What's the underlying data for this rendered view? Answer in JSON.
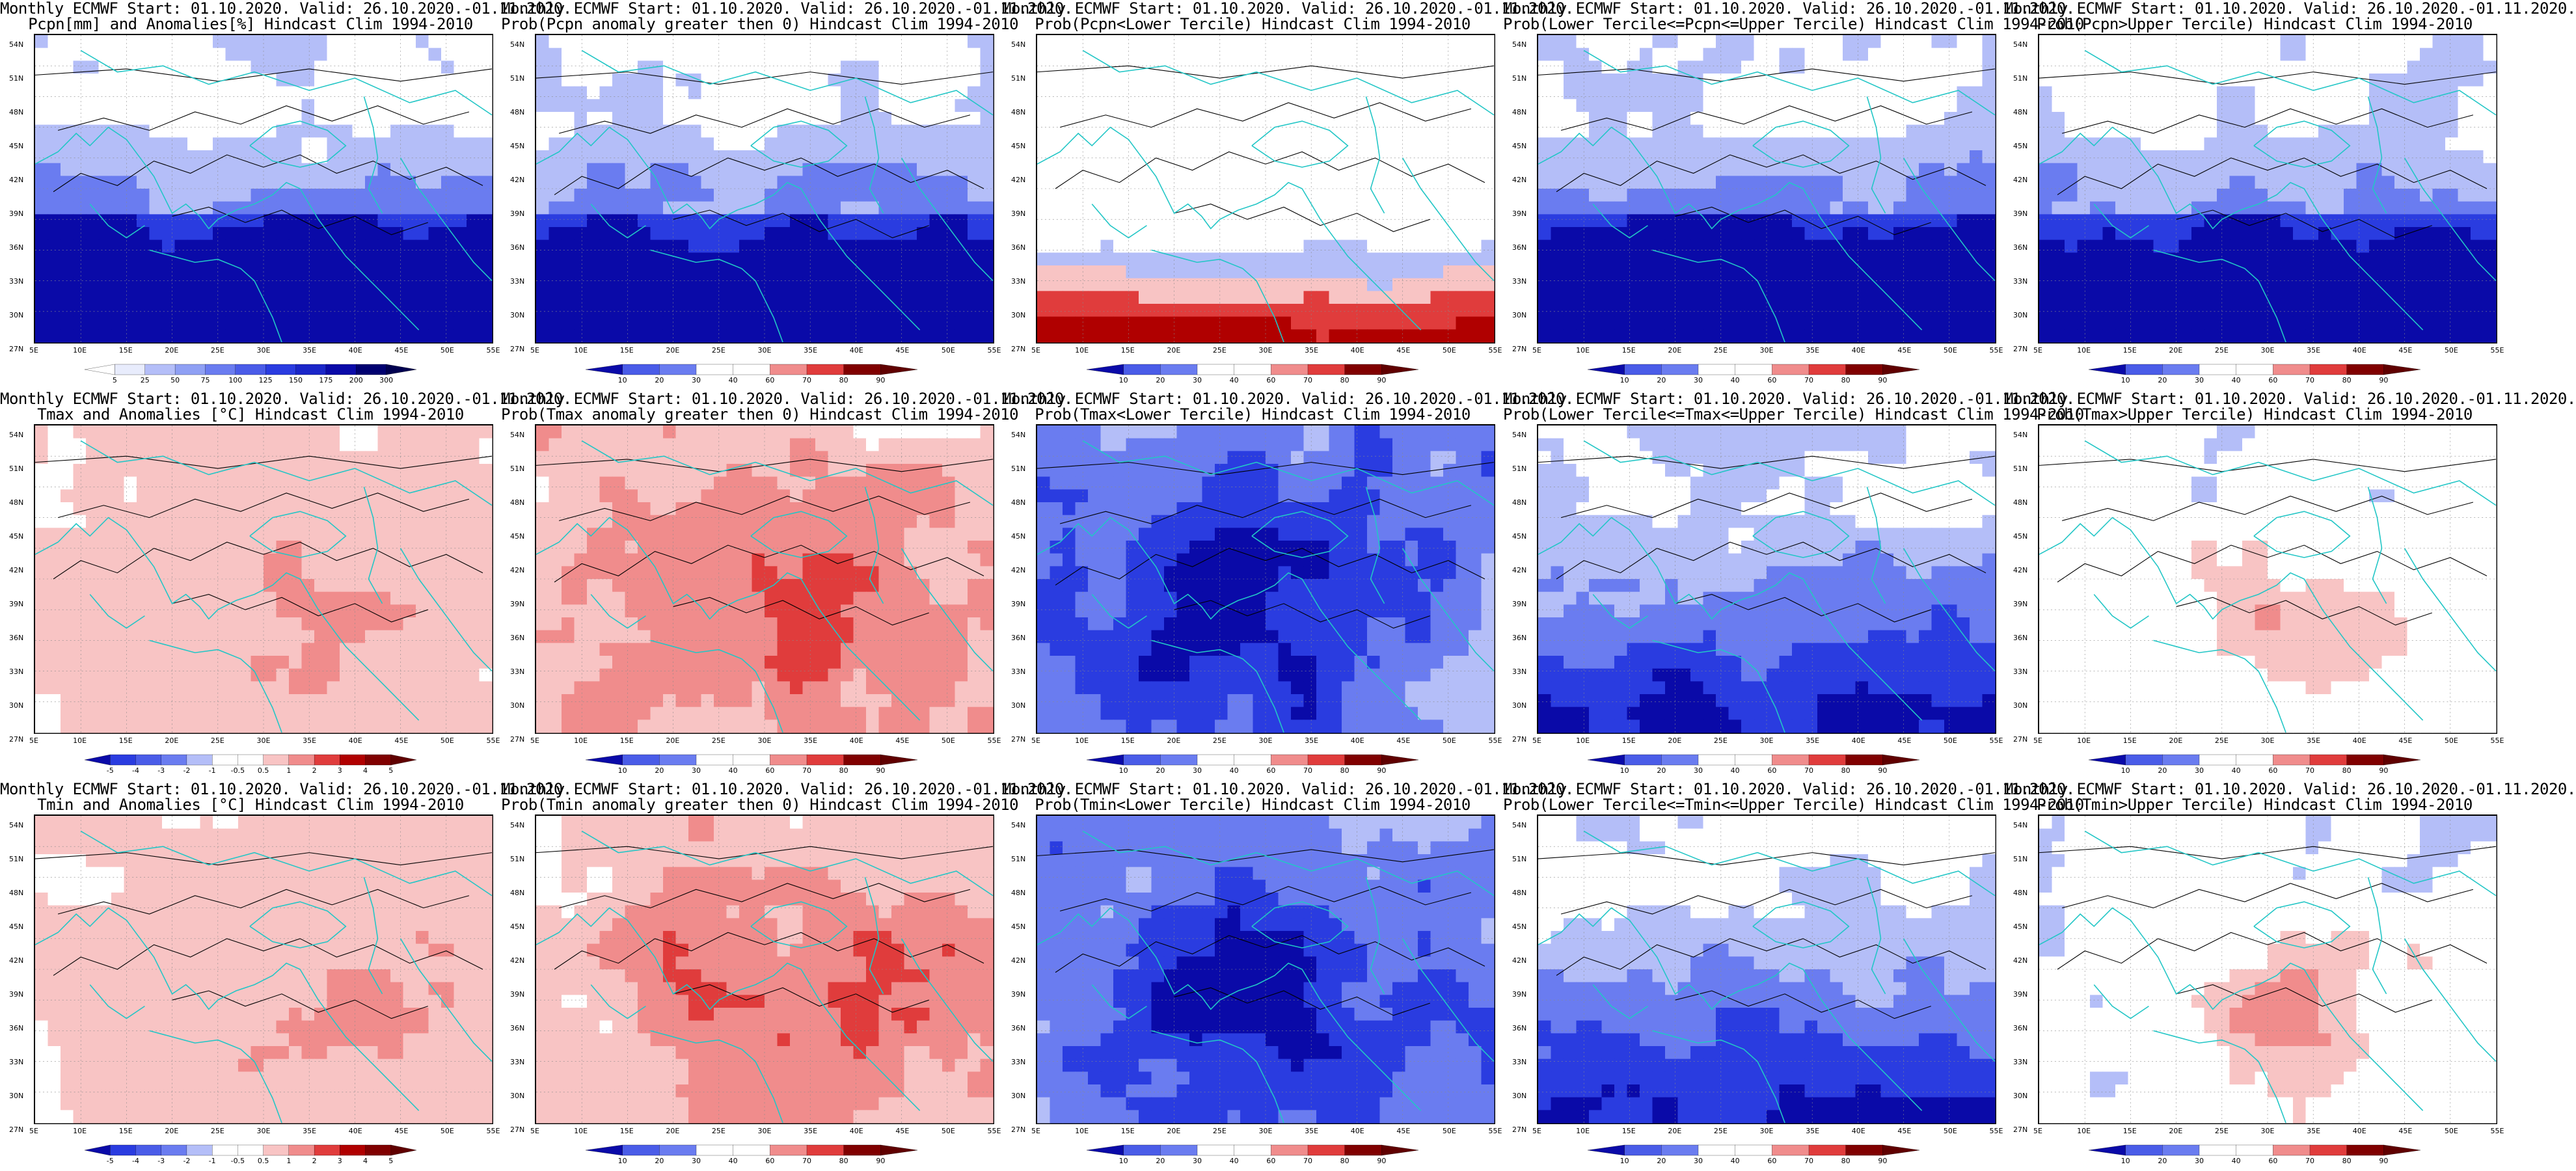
{
  "figure": {
    "colors": {
      "deep_blue": "#0a0aa8",
      "blue": "#2a3ce0",
      "mid_blue": "#6a7cf0",
      "light_blue": "#b4bef8",
      "white": "#ffffff",
      "light_red": "#f8c4c4",
      "mid_red": "#f08c8c",
      "red": "#e03c3c",
      "deep_red": "#b00000",
      "coast": "#22c6c6",
      "contour": "#000000"
    },
    "lat_labels": [
      "54N",
      "51N",
      "48N",
      "45N",
      "42N",
      "39N",
      "36N",
      "33N",
      "30N",
      "27N"
    ],
    "lon_labels": [
      "5E",
      "10E",
      "15E",
      "20E",
      "25E",
      "30E",
      "35E",
      "40E",
      "45E",
      "50E",
      "55E"
    ],
    "rows": [
      {
        "variable": "Pcpn",
        "panels": [
          {
            "title1": "Monthly ECMWF Start: 01.10.2020. Valid: 26.10.2020.-01.11.2020.",
            "title2": "Pcpn[mm] and Anomalies[%] Hindcast Clim 1994-2010",
            "scheme": "precip_anom",
            "colorbar": [
              "5",
              "25",
              "50",
              "75",
              "100",
              "125",
              "150",
              "175",
              "200",
              "300"
            ]
          },
          {
            "title1": "Monthly ECMWF Start: 01.10.2020. Valid: 26.10.2020.-01.11.2020.",
            "title2": "Prob(Pcpn anomaly greater then 0) Hindcast Clim 1994-2010",
            "scheme": "blue",
            "colorbar": [
              "10",
              "20",
              "30",
              "40",
              "60",
              "70",
              "80",
              "90"
            ]
          },
          {
            "title1": "Monthly ECMWF Start: 01.10.2020. Valid: 26.10.2020.-01.11.2020.",
            "title2": "Prob(Pcpn<Lower Tercile) Hindcast Clim 1994-2010",
            "scheme": "dry",
            "colorbar": [
              "10",
              "20",
              "30",
              "40",
              "60",
              "70",
              "80",
              "90"
            ]
          },
          {
            "title1": "Monthly ECMWF Start: 01.10.2020. Valid: 26.10.2020.-01.11.2020.",
            "title2": "Prob(Lower Tercile<=Pcpn<=Upper Tercile) Hindcast Clim 1994-2010",
            "scheme": "blue",
            "colorbar": [
              "10",
              "20",
              "30",
              "40",
              "60",
              "70",
              "80",
              "90"
            ]
          },
          {
            "title1": "Monthly ECMWF Start: 01.10.2020. Valid: 26.10.2020.-01.11.2020.",
            "title2": "Prob(Pcpn>Upper Tercile) Hindcast Clim 1994-2010",
            "scheme": "blue",
            "colorbar": [
              "10",
              "20",
              "30",
              "40",
              "60",
              "70",
              "80",
              "90"
            ]
          }
        ]
      },
      {
        "variable": "Tmax",
        "panels": [
          {
            "title1": "Monthly ECMWF Start: 01.10.2020. Valid: 26.10.2020.-01.11.2020.",
            "title2": "Tmax and Anomalies [°C] Hindcast Clim 1994-2010",
            "scheme": "warm_light",
            "colorbar": [
              "-5",
              "-4",
              "-3",
              "-2",
              "-1",
              "-0.5",
              "0.5",
              "1",
              "2",
              "3",
              "4",
              "5"
            ]
          },
          {
            "title1": "Monthly ECMWF Start: 01.10.2020. Valid: 26.10.2020.-01.11.2020.",
            "title2": "Prob(Tmax anomaly greater then 0) Hindcast Clim 1994-2010",
            "scheme": "warm",
            "colorbar": [
              "10",
              "20",
              "30",
              "40",
              "60",
              "70",
              "80",
              "90"
            ]
          },
          {
            "title1": "Monthly ECMWF Start: 01.10.2020. Valid: 26.10.2020.-01.11.2020.",
            "title2": "Prob(Tmax<Lower Tercile) Hindcast Clim 1994-2010",
            "scheme": "blue_deep",
            "colorbar": [
              "10",
              "20",
              "30",
              "40",
              "60",
              "70",
              "80",
              "90"
            ]
          },
          {
            "title1": "Monthly ECMWF Start: 01.10.2020. Valid: 26.10.2020.-01.11.2020.",
            "title2": "Prob(Lower Tercile<=Tmax<=Upper Tercile) Hindcast Clim 1994-2010",
            "scheme": "blue",
            "colorbar": [
              "10",
              "20",
              "30",
              "40",
              "60",
              "70",
              "80",
              "90"
            ]
          },
          {
            "title1": "Monthly ECMWF Start: 01.10.2020. Valid: 26.10.2020.-01.11.2020.",
            "title2": "Prob(Tmax>Upper Tercile) Hindcast Clim 1994-2010",
            "scheme": "mixed_red",
            "colorbar": [
              "10",
              "20",
              "30",
              "40",
              "60",
              "70",
              "80",
              "90"
            ]
          }
        ]
      },
      {
        "variable": "Tmin",
        "panels": [
          {
            "title1": "Monthly ECMWF Start: 01.10.2020. Valid: 26.10.2020.-01.11.2020.",
            "title2": "Tmin and Anomalies [°C] Hindcast Clim 1994-2010",
            "scheme": "warm_light",
            "colorbar": [
              "-5",
              "-4",
              "-3",
              "-2",
              "-1",
              "-0.5",
              "0.5",
              "1",
              "2",
              "3",
              "4",
              "5"
            ]
          },
          {
            "title1": "Monthly ECMWF Start: 01.10.2020. Valid: 26.10.2020.-01.11.2020.",
            "title2": "Prob(Tmin anomaly greater then 0) Hindcast Clim 1994-2010",
            "scheme": "warm",
            "colorbar": [
              "10",
              "20",
              "30",
              "40",
              "60",
              "70",
              "80",
              "90"
            ]
          },
          {
            "title1": "Monthly ECMWF Start: 01.10.2020. Valid: 26.10.2020.-01.11.2020.",
            "title2": "Prob(Tmin<Lower Tercile) Hindcast Clim 1994-2010",
            "scheme": "blue_deep",
            "colorbar": [
              "10",
              "20",
              "30",
              "40",
              "60",
              "70",
              "80",
              "90"
            ]
          },
          {
            "title1": "Monthly ECMWF Start: 01.10.2020. Valid: 26.10.2020.-01.11.2020.",
            "title2": "Prob(Lower Tercile<=Tmin<=Upper Tercile) Hindcast Clim 1994-2010",
            "scheme": "blue",
            "colorbar": [
              "10",
              "20",
              "30",
              "40",
              "60",
              "70",
              "80",
              "90"
            ]
          },
          {
            "title1": "Monthly ECMWF Start: 01.10.2020. Valid: 26.10.2020.-01.11.2020.",
            "title2": "Prob(Tmin>Upper Tercile) Hindcast Clim 1994-2010",
            "scheme": "mixed_red",
            "colorbar": [
              "10",
              "20",
              "30",
              "40",
              "60",
              "70",
              "80",
              "90"
            ]
          }
        ]
      }
    ]
  }
}
